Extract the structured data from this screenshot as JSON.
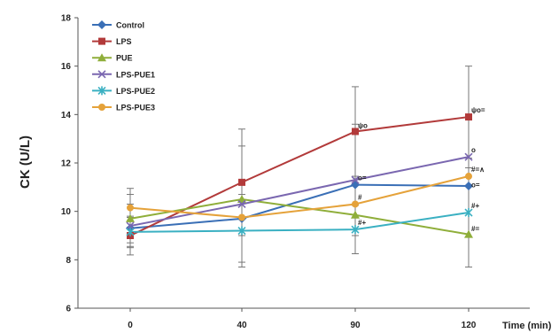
{
  "chart_data": {
    "type": "line",
    "x_categories": [
      "0",
      "40",
      "90",
      "120"
    ],
    "xlabel": "Time (min)",
    "ylabel": "CK (U/L)",
    "ylim": [
      6,
      18
    ],
    "yticks": [
      6,
      8,
      10,
      12,
      14,
      16,
      18
    ],
    "legend_position": "top-left",
    "grid": false,
    "series": [
      {
        "name": "Control",
        "color": "#3A6FB6",
        "marker": "diamond",
        "values": [
          9.3,
          9.7,
          11.1,
          11.05
        ],
        "errors": [
          0,
          0,
          0,
          0
        ]
      },
      {
        "name": "LPS",
        "color": "#B23A3A",
        "marker": "square",
        "values": [
          9.0,
          11.2,
          13.3,
          13.9
        ],
        "errors": [
          0.8,
          2.2,
          1.85,
          2.1
        ]
      },
      {
        "name": "PUE",
        "color": "#8FAE3A",
        "marker": "triangle",
        "values": [
          9.7,
          10.5,
          9.85,
          9.05
        ],
        "errors": [
          1.0,
          0,
          0,
          0
        ]
      },
      {
        "name": "LPS-PUE1",
        "color": "#7A67B0",
        "marker": "x",
        "values": [
          9.4,
          10.3,
          11.3,
          12.25
        ],
        "errors": [
          0.9,
          2.4,
          2.3,
          0
        ]
      },
      {
        "name": "LPS-PUE2",
        "color": "#3AB0C2",
        "marker": "star",
        "values": [
          9.15,
          9.2,
          9.25,
          9.95
        ],
        "errors": [
          0.6,
          1.5,
          1.0,
          2.25
        ]
      },
      {
        "name": "LPS-PUE3",
        "color": "#E5A23A",
        "marker": "circle",
        "values": [
          10.15,
          9.75,
          10.3,
          11.45
        ],
        "errors": [
          0.8,
          0,
          0,
          0
        ]
      }
    ],
    "annotations": [
      {
        "x": "90",
        "y": 13.55,
        "text": "ψο"
      },
      {
        "x": "120",
        "y": 14.2,
        "text": "ψο="
      },
      {
        "x": "120",
        "y": 12.55,
        "text": "ο"
      },
      {
        "x": "90",
        "y": 11.4,
        "text": "ο="
      },
      {
        "x": "120",
        "y": 11.75,
        "text": "#=∧"
      },
      {
        "x": "120",
        "y": 11.1,
        "text": "ο="
      },
      {
        "x": "90",
        "y": 10.6,
        "text": "#"
      },
      {
        "x": "120",
        "y": 10.25,
        "text": "#+"
      },
      {
        "x": "90",
        "y": 9.55,
        "text": "#+"
      },
      {
        "x": "120",
        "y": 9.3,
        "text": "#="
      }
    ]
  }
}
